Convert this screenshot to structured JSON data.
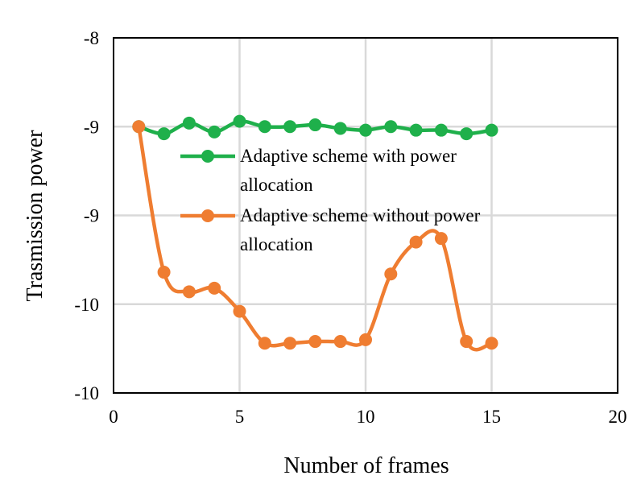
{
  "chart_data": {
    "type": "line",
    "title": "",
    "xlabel": "Number of frames",
    "ylabel": "Trasmission power",
    "xlim": [
      0,
      20
    ],
    "ylim": [
      -10.5,
      -8.5
    ],
    "x_ticks": [
      0,
      5,
      10,
      15,
      20
    ],
    "x_tick_labels": [
      "0",
      "5",
      "10",
      "15",
      "20"
    ],
    "y_ticks": [
      -8.5,
      -9.0,
      -9.5,
      -10.0,
      -10.5
    ],
    "y_tick_labels": [
      "-8",
      "-9",
      "-9",
      "-10",
      "-10"
    ],
    "grid": true,
    "legend_position": "center",
    "series": [
      {
        "name": "Adaptive scheme with power allocation",
        "legend_lines": [
          "Adaptive scheme with power",
          "allocation"
        ],
        "color": "#1fb04b",
        "x": [
          1,
          2,
          3,
          4,
          5,
          6,
          7,
          8,
          9,
          10,
          11,
          12,
          13,
          14,
          15
        ],
        "values": [
          -9.0,
          -9.04,
          -8.98,
          -9.03,
          -8.97,
          -9.0,
          -9.0,
          -8.99,
          -9.01,
          -9.02,
          -9.0,
          -9.02,
          -9.02,
          -9.04,
          -9.02
        ]
      },
      {
        "name": "Adaptive scheme without power allocation",
        "legend_lines": [
          "Adaptive scheme without power",
          "allocation"
        ],
        "color": "#ef7d31",
        "x": [
          1,
          2,
          3,
          4,
          5,
          6,
          7,
          8,
          9,
          10,
          11,
          12,
          13,
          14,
          15
        ],
        "values": [
          -9.0,
          -9.82,
          -9.93,
          -9.91,
          -10.04,
          -10.22,
          -10.22,
          -10.21,
          -10.21,
          -10.2,
          -9.83,
          -9.65,
          -9.63,
          -10.21,
          -10.22
        ]
      }
    ]
  }
}
